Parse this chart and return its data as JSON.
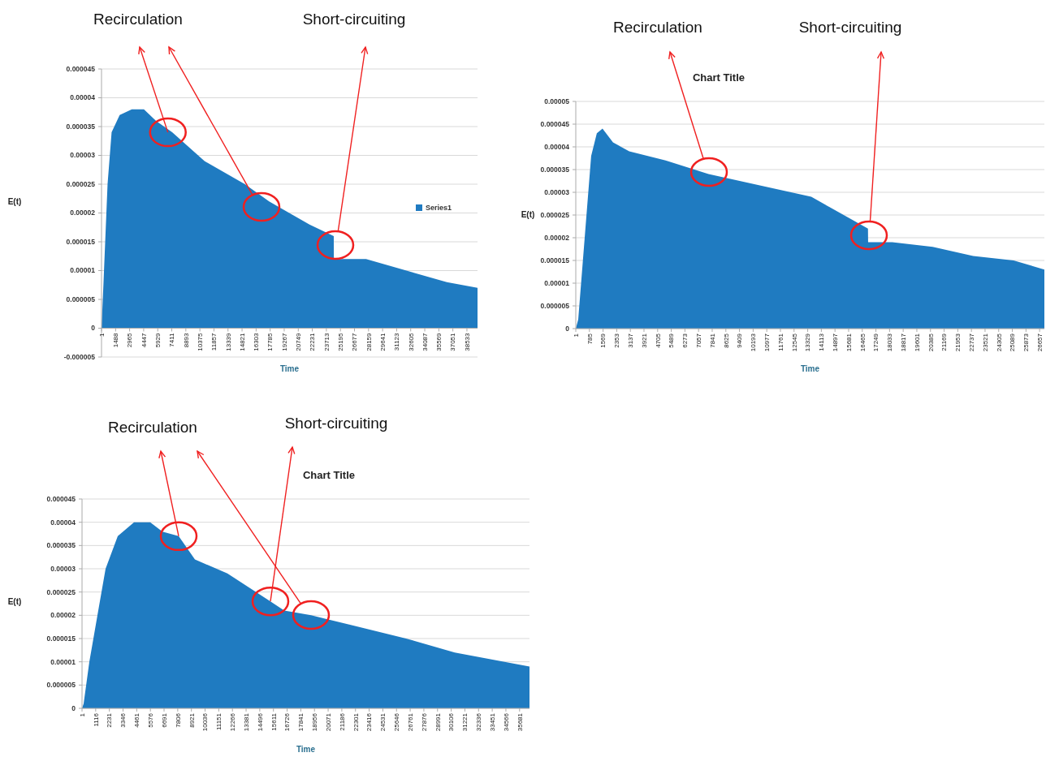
{
  "chart_data": [
    {
      "type": "area",
      "xlabel": "Time",
      "ylabel": "E(t)",
      "legend": "right",
      "grid": "y",
      "annotations": [
        {
          "text": "Recirculation",
          "x": 7000,
          "y": 3.4e-05
        },
        "Short-circuiting"
      ],
      "xlim": [
        1,
        39650
      ],
      "ylim": [
        -5e-06,
        4.5e-05
      ],
      "xticks": [
        1,
        1488,
        2965,
        4447,
        5929,
        7411,
        8893,
        10375,
        11857,
        13339,
        14821,
        16303,
        17785,
        19267,
        20749,
        22231,
        23713,
        25195,
        26677,
        28159,
        29641,
        31123,
        32605,
        34087,
        35569,
        37051,
        38533
      ],
      "yticks": [
        {
          "value": -5e-06,
          "label": "-0.000005"
        },
        {
          "value": 0,
          "label": "0"
        },
        {
          "value": 5e-06,
          "label": "0.000005"
        },
        {
          "value": 1e-05,
          "label": "0.00001"
        },
        {
          "value": 1.5e-05,
          "label": "0.000015"
        },
        {
          "value": 2e-05,
          "label": "0.00002"
        },
        {
          "value": 2.5e-05,
          "label": "0.000025"
        },
        {
          "value": 3e-05,
          "label": "0.00003"
        },
        {
          "value": 3.5e-05,
          "label": "0.000035"
        },
        {
          "value": 4e-05,
          "label": "0.00004"
        },
        {
          "value": 4.5e-05,
          "label": "0.000045"
        }
      ],
      "series": [
        {
          "name": "Series1",
          "color": "#1f7bc1",
          "x": [
            1,
            214,
            640,
            1066,
            1917,
            3195,
            4473,
            5750,
            7454,
            10861,
            15120,
            17675,
            21934,
            24489,
            24500,
            27896,
            32155,
            36414,
            39650
          ],
          "values": [
            0,
            8e-06,
            2.5e-05,
            3.4e-05,
            3.7e-05,
            3.8e-05,
            3.8e-05,
            3.6e-05,
            3.4e-05,
            2.9e-05,
            2.5e-05,
            2.2e-05,
            1.8e-05,
            1.6e-05,
            1.2e-05,
            1.2e-05,
            1e-05,
            8e-06,
            7e-06
          ]
        }
      ]
    },
    {
      "type": "area",
      "title": "Chart Title",
      "xlabel": "Time",
      "ylabel": "E(t)",
      "grid": "y",
      "annotations": [
        "Recirculation",
        "Short-circuiting"
      ],
      "xlim": [
        1,
        26930
      ],
      "ylim": [
        0,
        5e-05
      ],
      "xticks": [
        1,
        785,
        1569,
        2353,
        3137,
        3921,
        4705,
        5489,
        6273,
        7057,
        7841,
        8625,
        9409,
        10193,
        10977,
        11761,
        12545,
        13329,
        14113,
        14897,
        15681,
        16465,
        17249,
        18033,
        18817,
        19601,
        20385,
        21169,
        21953,
        22737,
        23521,
        24305,
        25089,
        25873,
        26657
      ],
      "yticks": [
        {
          "value": 0,
          "label": "0"
        },
        {
          "value": 5e-06,
          "label": "0.000005"
        },
        {
          "value": 1e-05,
          "label": "0.00001"
        },
        {
          "value": 1.5e-05,
          "label": "0.000015"
        },
        {
          "value": 2e-05,
          "label": "0.00002"
        },
        {
          "value": 2.5e-05,
          "label": "0.000025"
        },
        {
          "value": 3e-05,
          "label": "0.00003"
        },
        {
          "value": 3.5e-05,
          "label": "0.000035"
        },
        {
          "value": 4e-05,
          "label": "0.00004"
        },
        {
          "value": 4.5e-05,
          "label": "0.000045"
        },
        {
          "value": 5e-05,
          "label": "0.00005"
        }
      ],
      "series": [
        {
          "color": "#1f7bc1",
          "x": [
            1,
            141,
            513,
            885,
            1210,
            1536,
            2141,
            3071,
            5164,
            7629,
            11210,
            13535,
            16792,
            16800,
            18187,
            20512,
            22838,
            25163,
            26930
          ],
          "values": [
            0,
            2e-06,
            2e-05,
            3.8e-05,
            4.3e-05,
            4.4e-05,
            4.1e-05,
            3.9e-05,
            3.7e-05,
            3.4e-05,
            3.1e-05,
            2.9e-05,
            2.2e-05,
            1.9e-05,
            1.9e-05,
            1.8e-05,
            1.6e-05,
            1.5e-05,
            1.3e-05
          ]
        }
      ]
    },
    {
      "type": "area",
      "title": "Chart Title",
      "xlabel": "Time",
      "ylabel": "E(t)",
      "grid": "y",
      "annotations": [
        {
          "text": "Recirculation",
          "x": 7882,
          "y": 3.7e-05
        },
        {
          "text": "Short-circuiting",
          "x": 15365,
          "y": 2.3e-05
        }
      ],
      "xlim": [
        1,
        36490
      ],
      "ylim": [
        0,
        4.5e-05
      ],
      "xticks": [
        1,
        1116,
        2231,
        3346,
        4461,
        5576,
        6691,
        7806,
        8921,
        10036,
        11151,
        12266,
        13381,
        14496,
        15611,
        16726,
        17841,
        18956,
        20071,
        21186,
        22301,
        23416,
        24531,
        25646,
        26761,
        27876,
        28991,
        30106,
        31221,
        32336,
        33451,
        34566,
        35681
      ],
      "yticks": [
        {
          "value": 0,
          "label": "0"
        },
        {
          "value": 5e-06,
          "label": "0.000005"
        },
        {
          "value": 1e-05,
          "label": "0.00001"
        },
        {
          "value": 1.5e-05,
          "label": "0.000015"
        },
        {
          "value": 2e-05,
          "label": "0.00002"
        },
        {
          "value": 2.5e-05,
          "label": "0.000025"
        },
        {
          "value": 3e-05,
          "label": "0.00003"
        },
        {
          "value": 3.5e-05,
          "label": "0.000035"
        },
        {
          "value": 4e-05,
          "label": "0.00004"
        },
        {
          "value": 4.5e-05,
          "label": "0.000045"
        }
      ],
      "series": [
        {
          "color": "#1f7bc1",
          "x": [
            1,
            133,
            597,
            1259,
            1922,
            2915,
            4239,
            5564,
            6557,
            7882,
            9206,
            11855,
            15365,
            16491,
            18677,
            21789,
            26425,
            30398,
            36490
          ],
          "values": [
            0,
            1e-06,
            1e-05,
            2e-05,
            3e-05,
            3.7e-05,
            4e-05,
            4e-05,
            3.8e-05,
            3.7e-05,
            3.2e-05,
            2.9e-05,
            2.3e-05,
            2.1e-05,
            2e-05,
            1.8e-05,
            1.5e-05,
            1.2e-05,
            9e-06
          ]
        }
      ]
    }
  ]
}
